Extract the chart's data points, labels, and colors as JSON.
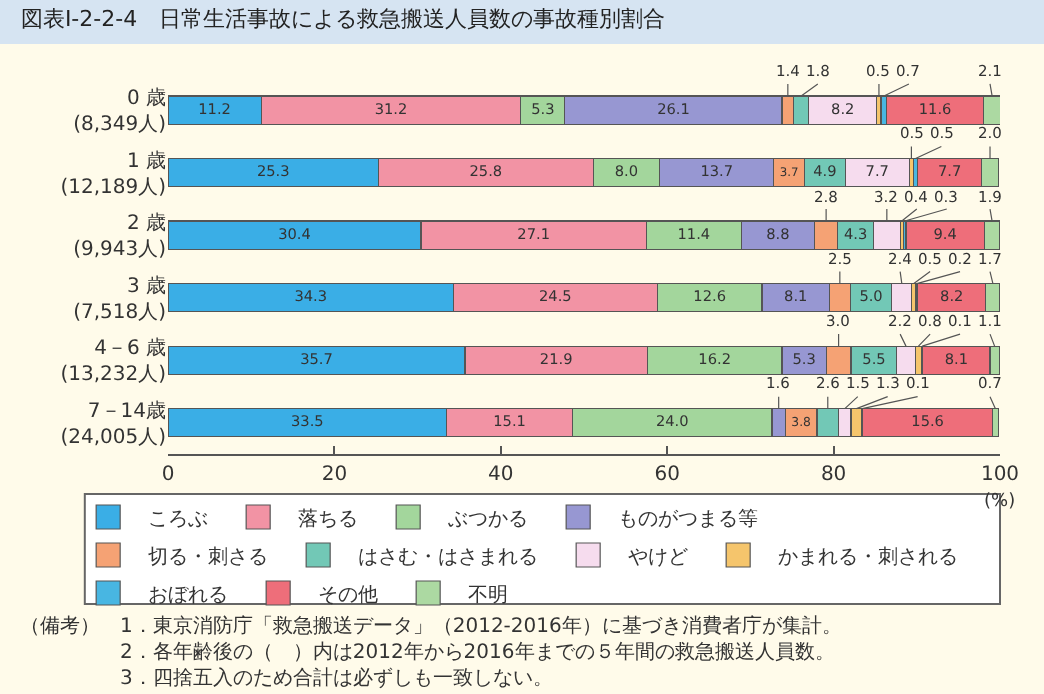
{
  "chart_data": {
    "type": "bar",
    "orientation": "horizontal",
    "stacked": true,
    "title": "図表Ⅰ-2-2-4　日常生活事故による救急搬送人員数の事故種別割合",
    "xlabel": "(%)",
    "categories": [
      "0 歳\n(8,349人)",
      "1 歳\n(12,189人)",
      "2 歳\n(9,943人)",
      "3 歳\n(7,518人)",
      "4－6 歳\n(13,232人)",
      "7－14歳\n(24,005人)"
    ],
    "series": [
      {
        "name": "ころぶ",
        "color": "#3aaee6",
        "values": [
          11.2,
          25.3,
          30.4,
          34.3,
          35.7,
          33.5
        ],
        "value_labels": [
          "11.2",
          "25.3",
          "30.4",
          "34.3",
          "35.7",
          "33.5"
        ]
      },
      {
        "name": "落ちる",
        "color": "#f293a4",
        "values": [
          31.2,
          25.8,
          27.1,
          24.5,
          21.9,
          15.1
        ],
        "value_labels": [
          "31.2",
          "25.8",
          "27.1",
          "24.5",
          "21.9",
          "15.1"
        ]
      },
      {
        "name": "ぶつかる",
        "color": "#a3d69c",
        "values": [
          5.3,
          8.0,
          11.4,
          12.6,
          16.2,
          24.0
        ],
        "value_labels": [
          "5.3",
          "8.0",
          "11.4",
          "12.6",
          "16.2",
          "24.0"
        ]
      },
      {
        "name": "ものがつまる等",
        "color": "#9797d2",
        "values": [
          26.1,
          13.7,
          8.8,
          8.1,
          5.3,
          1.6
        ],
        "value_labels": [
          "26.1",
          "13.7",
          "8.8",
          "8.1",
          "5.3",
          "1.6"
        ]
      },
      {
        "name": "切る・刺さる",
        "color": "#f5a274",
        "values": [
          1.4,
          3.7,
          2.8,
          2.5,
          3.0,
          3.8
        ],
        "value_labels": [
          "1.4",
          "3.7",
          "2.8",
          "2.5",
          "3.0",
          "3.8"
        ]
      },
      {
        "name": "はさむ・はさまれる",
        "color": "#72c8b6",
        "values": [
          1.8,
          4.9,
          4.3,
          5.0,
          5.5,
          2.6
        ],
        "value_labels": [
          "1.8",
          "4.9",
          "4.3",
          "5.0",
          "5.5",
          "2.6"
        ]
      },
      {
        "name": "やけど",
        "color": "#f6dcee",
        "values": [
          8.2,
          7.7,
          3.2,
          2.4,
          2.2,
          1.5
        ],
        "value_labels": [
          "8.2",
          "7.7",
          "3.2",
          "2.4",
          "2.2",
          "1.5"
        ]
      },
      {
        "name": "かまれる・刺される",
        "color": "#f5c56c",
        "values": [
          0.5,
          0.5,
          0.4,
          0.5,
          0.8,
          1.3
        ],
        "value_labels": [
          "0.5",
          "0.5",
          "0.4",
          "0.5",
          "0.8",
          "1.3"
        ]
      },
      {
        "name": "おぼれる",
        "color": "#48b6e2",
        "values": [
          0.7,
          0.5,
          0.3,
          0.2,
          0.1,
          0.1
        ],
        "value_labels": [
          "0.7",
          "0.5",
          "0.3",
          "0.2",
          "0.1",
          "0.1"
        ]
      },
      {
        "name": "その他",
        "color": "#ee6e7a",
        "values": [
          11.6,
          7.7,
          9.4,
          8.2,
          8.1,
          15.6
        ],
        "value_labels": [
          "11.6",
          "7.7",
          "9.4",
          "8.2",
          "8.1",
          "15.6"
        ]
      },
      {
        "name": "不明",
        "color": "#acd9a2",
        "values": [
          2.1,
          2.0,
          1.9,
          1.7,
          1.1,
          0.7
        ],
        "value_labels": [
          "2.1",
          "2.0",
          "1.9",
          "1.7",
          "1.1",
          "0.7"
        ]
      }
    ],
    "xlim": [
      0,
      100
    ],
    "xticks": [
      0,
      20,
      40,
      60,
      80,
      100
    ],
    "grid": false,
    "legend": "bottom",
    "annotations": [
      "（備考）　1．東京消防庁「救急搬送データ」（2012-2016年）に基づき消費者庁が集計。",
      "　　　　　2．各年齢後の（　）内は2012年から2016年までの５年間の救急搬送人員数。",
      "　　　　　3．四捨五入のため合計は必ずしも一致しない。"
    ]
  }
}
